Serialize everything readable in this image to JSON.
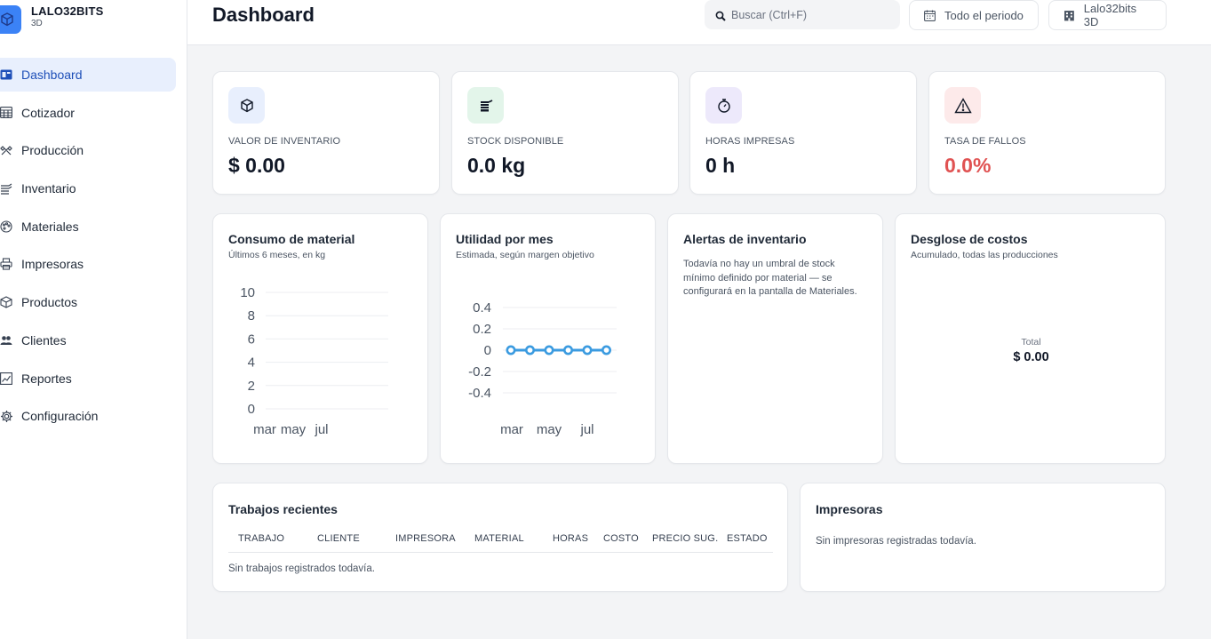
{
  "brand": {
    "name": "LALO32BITS",
    "sub": "3D",
    "logo_icon": "cube-icon",
    "accent": "#3b82f6"
  },
  "sidebar": {
    "items": [
      {
        "label": "Dashboard",
        "icon": "dashboard-icon",
        "active": true
      },
      {
        "label": "Cotizador",
        "icon": "calculator-icon"
      },
      {
        "label": "Producción",
        "icon": "tools-icon"
      },
      {
        "label": "Inventario",
        "icon": "spool-icon"
      },
      {
        "label": "Materiales",
        "icon": "palette-icon"
      },
      {
        "label": "Impresoras",
        "icon": "printer-icon"
      },
      {
        "label": "Productos",
        "icon": "box-icon"
      },
      {
        "label": "Clientes",
        "icon": "users-icon"
      },
      {
        "label": "Reportes",
        "icon": "chart-icon"
      },
      {
        "label": "Configuración",
        "icon": "gear-icon"
      }
    ]
  },
  "header": {
    "title": "Dashboard",
    "search_placeholder": "Buscar (Ctrl+F)",
    "period_label": "Todo el periodo",
    "company_label": "Lalo32bits 3D"
  },
  "stats": [
    {
      "label": "VALOR DE INVENTARIO",
      "value": "$ 0.00",
      "icon": "cube-icon",
      "bg": "#e8effd"
    },
    {
      "label": "STOCK DISPONIBLE",
      "value": "0.0 kg",
      "icon": "spool-icon",
      "bg": "#e3f5ea"
    },
    {
      "label": "HORAS IMPRESAS",
      "value": "0 h",
      "icon": "stopwatch-icon",
      "bg": "#ede9fb"
    },
    {
      "label": "TASA DE FALLOS",
      "value": "0.0%",
      "icon": "warning-icon",
      "bg": "#fdeaea",
      "color": "#e05252"
    }
  ],
  "consumo": {
    "title": "Consumo de material",
    "subtitle": "Últimos 6 meses, en kg"
  },
  "utilidad": {
    "title": "Utilidad por mes",
    "subtitle": "Estimada, según margen objetivo"
  },
  "alertas": {
    "title": "Alertas de inventario",
    "text": "Todavía no hay un umbral de stock mínimo definido por material — se configurará en la pantalla de Materiales."
  },
  "desglose": {
    "title": "Desglose de costos",
    "subtitle": "Acumulado, todas las producciones",
    "total_label": "Total",
    "total_value": "$ 0.00"
  },
  "trabajos": {
    "title": "Trabajos recientes",
    "columns": [
      "TRABAJO",
      "CLIENTE",
      "IMPRESORA",
      "MATERIAL",
      "HORAS",
      "COSTO",
      "PRECIO SUG.",
      "ESTADO"
    ],
    "empty": "Sin trabajos registrados todavía."
  },
  "impresoras": {
    "title": "Impresoras",
    "empty": "Sin impresoras registradas todavía."
  },
  "chart_data": [
    {
      "type": "line",
      "title": "Consumo de material",
      "x_ticks": [
        "mar",
        "may",
        "jul"
      ],
      "y_ticks": [
        "10",
        "8",
        "6",
        "4",
        "2",
        "0"
      ],
      "ylim": [
        0,
        10
      ],
      "series": [
        {
          "values": []
        }
      ],
      "grid": true
    },
    {
      "type": "line",
      "title": "Utilidad por mes",
      "x": [
        "feb",
        "mar",
        "abr",
        "may",
        "jun",
        "jul"
      ],
      "x_ticks": [
        "mar",
        "may",
        "jul"
      ],
      "y_ticks": [
        "0.4",
        "0.2",
        "0",
        "-0.2",
        "-0.4"
      ],
      "ylim": [
        -0.5,
        0.5
      ],
      "series": [
        {
          "values": [
            0,
            0,
            0,
            0,
            0,
            0
          ],
          "color": "#3b9be0"
        }
      ],
      "grid": true
    }
  ]
}
